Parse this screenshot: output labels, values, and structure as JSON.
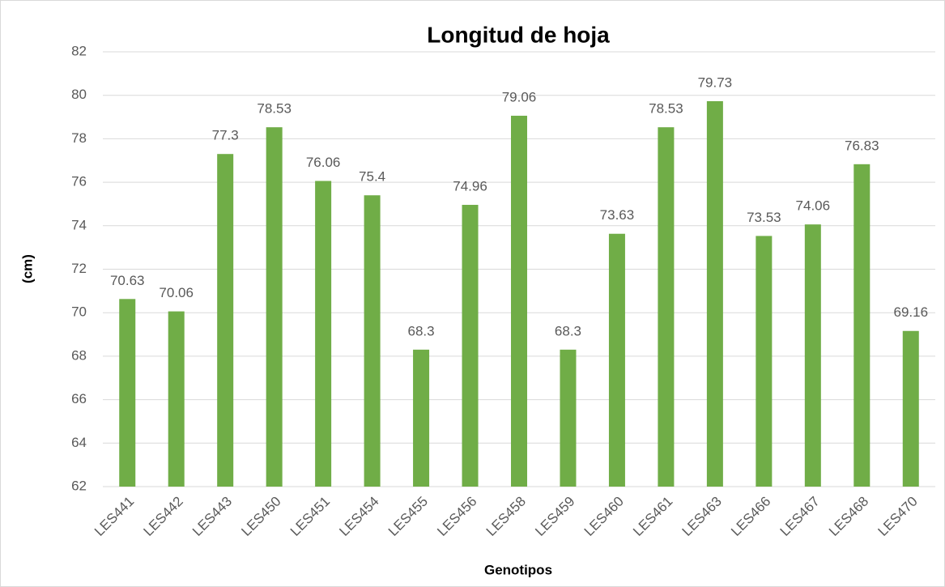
{
  "chart_data": {
    "type": "bar",
    "title": "Longitud de hoja",
    "x_label": "Genotipos",
    "y_label": "(cm)",
    "categories": [
      "LES441",
      "LES442",
      "LES443",
      "LES450",
      "LES451",
      "LES454",
      "LES455",
      "LES456",
      "LES458",
      "LES459",
      "LES460",
      "LES461",
      "LES463",
      "LES466",
      "LES467",
      "LES468",
      "LES470"
    ],
    "values": [
      70.63,
      70.06,
      77.3,
      78.53,
      76.06,
      75.4,
      68.3,
      74.96,
      79.06,
      68.3,
      73.63,
      78.53,
      79.73,
      73.53,
      74.06,
      76.83,
      69.16
    ],
    "color": "#70ad47",
    "ylim": [
      62,
      82
    ],
    "yticks": [
      62,
      64,
      66,
      68,
      70,
      72,
      74,
      76,
      78,
      80,
      82
    ],
    "grid": true
  }
}
